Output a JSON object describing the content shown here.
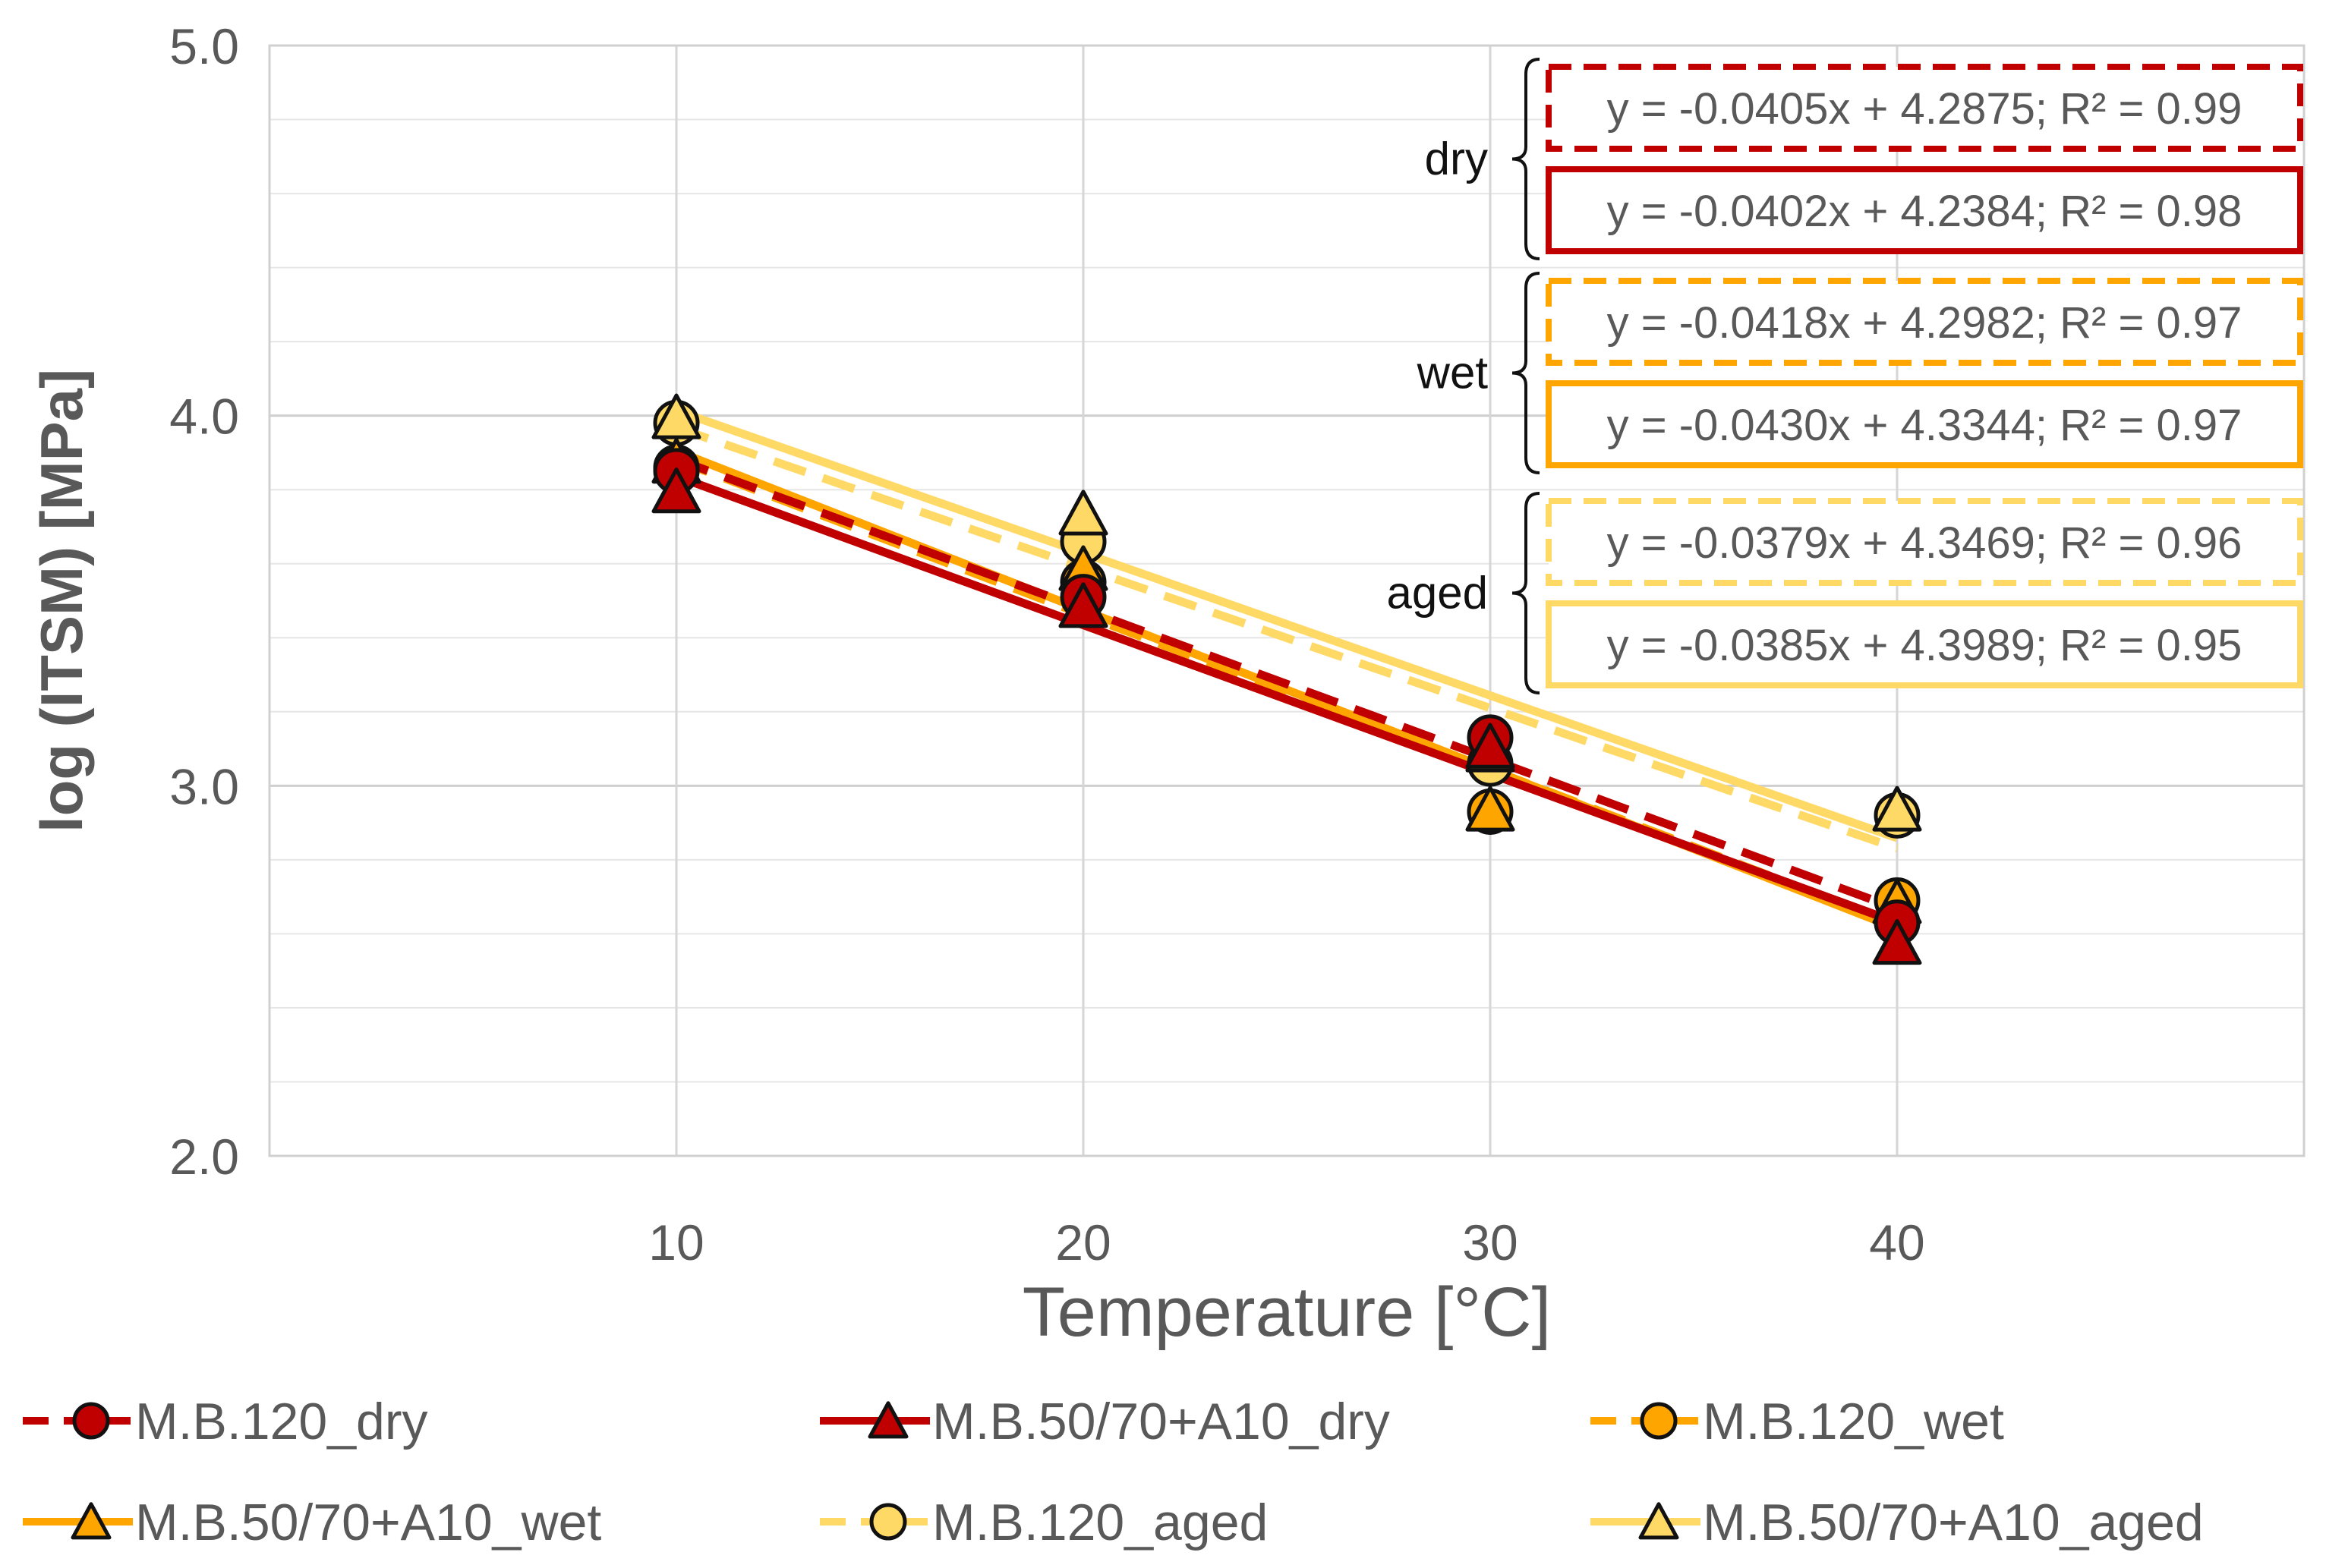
{
  "chart_data": {
    "type": "scatter",
    "xlabel": "Temperature [°C]",
    "ylabel": "log (ITSM) [MPa]",
    "xlim": [
      0,
      50
    ],
    "ylim": [
      2.0,
      5.0
    ],
    "xticks": [
      10,
      20,
      30,
      40
    ],
    "xtick_labels": [
      "10",
      "20",
      "30",
      "40"
    ],
    "yticks": [
      2.0,
      3.0,
      4.0,
      5.0
    ],
    "ytick_labels": [
      "2.0",
      "3.0",
      "4.0",
      "5.0"
    ],
    "ygrid_minor_step": 0.2,
    "grid": true,
    "legend_position": "bottom",
    "series": [
      {
        "name": "M.B.120_dry",
        "marker": "circle",
        "color": "#c00000",
        "line_style": "dashed",
        "x": [
          10,
          20,
          30,
          40
        ],
        "y": [
          3.85,
          3.51,
          3.13,
          2.63
        ],
        "trend": {
          "slope": -0.0405,
          "intercept": 4.2875
        }
      },
      {
        "name": "M.B.50/70+A10_dry",
        "marker": "triangle",
        "color": "#c00000",
        "line_style": "solid",
        "x": [
          10,
          20,
          30,
          40
        ],
        "y": [
          3.79,
          3.48,
          3.1,
          2.57
        ],
        "trend": {
          "slope": -0.0402,
          "intercept": 4.2384
        }
      },
      {
        "name": "M.B.120_wet",
        "marker": "circle",
        "color": "#ffa500",
        "line_style": "dashed",
        "x": [
          10,
          20,
          30,
          40
        ],
        "y": [
          3.86,
          3.55,
          2.93,
          2.69
        ],
        "trend": {
          "slope": -0.0418,
          "intercept": 4.2982
        }
      },
      {
        "name": "M.B.50/70+A10_wet",
        "marker": "triangle",
        "color": "#ffa500",
        "line_style": "solid",
        "x": [
          10,
          20,
          30,
          40
        ],
        "y": [
          3.87,
          3.58,
          2.93,
          2.68
        ],
        "trend": {
          "slope": -0.043,
          "intercept": 4.3344
        }
      },
      {
        "name": "M.B.120_aged",
        "marker": "circle",
        "color": "#ffd966",
        "line_style": "dashed",
        "x": [
          10,
          20,
          30,
          40
        ],
        "y": [
          3.98,
          3.66,
          3.06,
          2.92
        ],
        "trend": {
          "slope": -0.0379,
          "intercept": 4.3469
        }
      },
      {
        "name": "M.B.50/70+A10_aged",
        "marker": "triangle",
        "color": "#ffd966",
        "line_style": "solid",
        "x": [
          10,
          20,
          30,
          40
        ],
        "y": [
          3.99,
          3.73,
          3.09,
          2.93
        ],
        "trend": {
          "slope": -0.0385,
          "intercept": 4.3989
        }
      }
    ],
    "annotations": {
      "groups": [
        {
          "label": "dry",
          "equations": [
            {
              "text": "y = -0.0405x  + 4.2875;  R² = 0.99",
              "color": "#c00000",
              "border": "dashed"
            },
            {
              "text": "y = -0.0402x  + 4.2384;  R² = 0.98",
              "color": "#c00000",
              "border": "solid"
            }
          ]
        },
        {
          "label": "wet",
          "equations": [
            {
              "text": "y = -0.0418x  + 4.2982;  R² = 0.97",
              "color": "#ffa500",
              "border": "dashed"
            },
            {
              "text": "y = -0.0430x  + 4.3344;  R² = 0.97",
              "color": "#ffa500",
              "border": "solid"
            }
          ]
        },
        {
          "label": "aged",
          "equations": [
            {
              "text": "y = -0.0379x  + 4.3469;  R² = 0.96",
              "color": "#ffd966",
              "border": "dashed"
            },
            {
              "text": "y = -0.0385x  + 4.3989;  R² = 0.95",
              "color": "#ffd966",
              "border": "solid"
            }
          ]
        }
      ]
    }
  }
}
